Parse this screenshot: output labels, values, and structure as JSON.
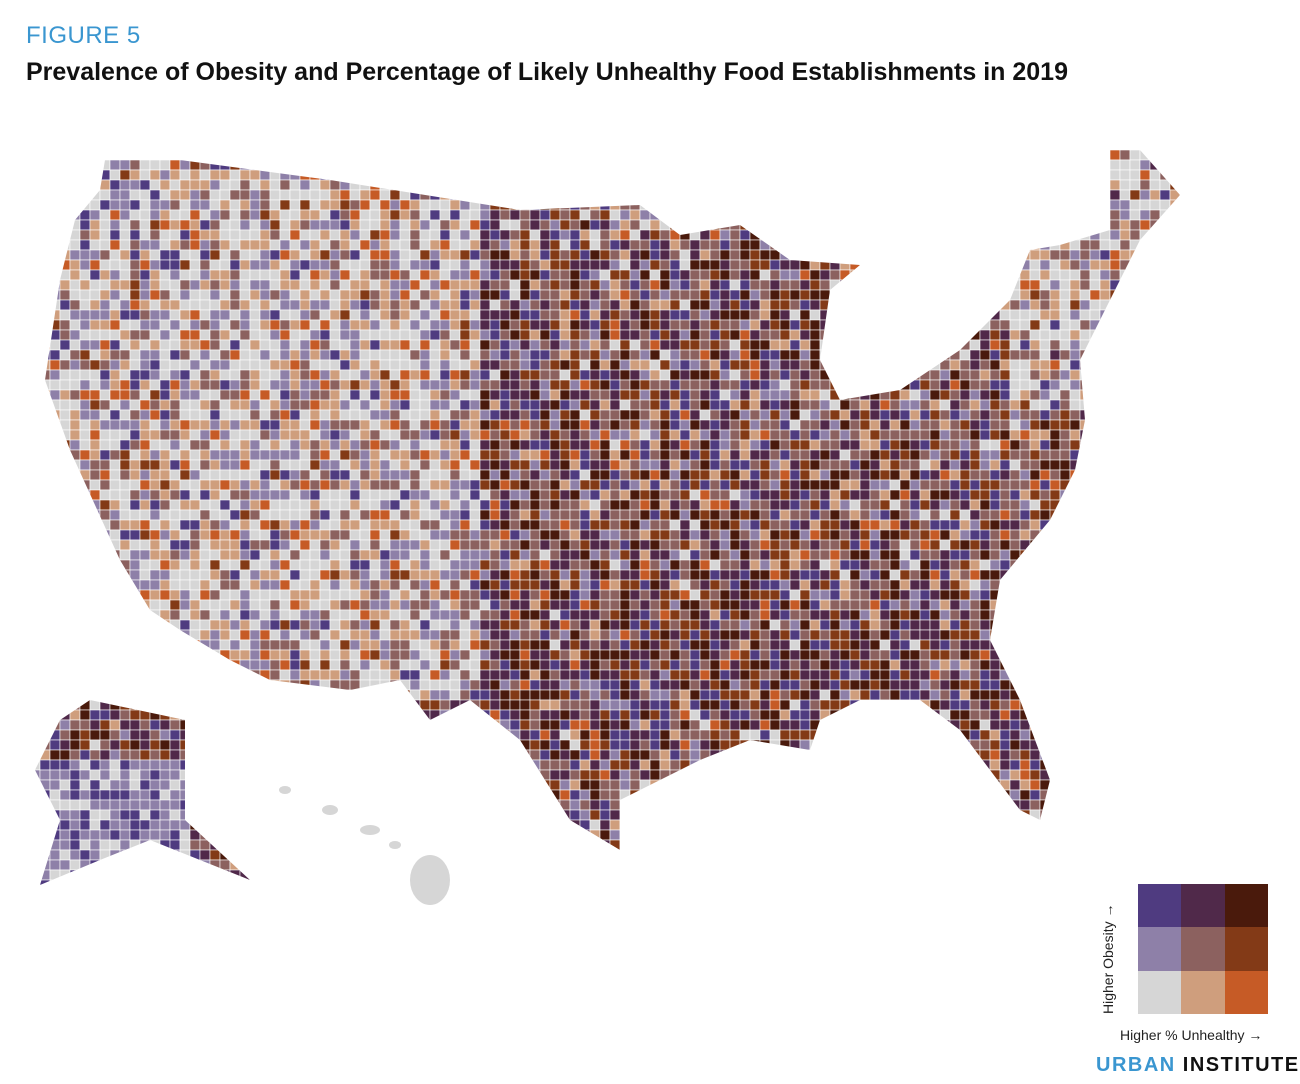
{
  "figure_label": "FIGURE 5",
  "title": "Prevalence of Obesity and Percentage of Likely Unhealthy Food Establishments in 2019",
  "legend": {
    "y_label": "Higher Obesity →",
    "x_label": "Higher % Unhealthy →",
    "colors": [
      [
        "#4f3b80",
        "#50294a",
        "#4a1a0c"
      ],
      [
        "#8e80a8",
        "#8c615f",
        "#833a17"
      ],
      [
        "#d6d6d6",
        "#cf9e7d",
        "#c65b26"
      ]
    ],
    "rows_order": "top = high obesity, bottom = low obesity",
    "cols_order": "left = low % unhealthy, right = high % unhealthy"
  },
  "map": {
    "type": "bivariate county choropleth",
    "region": "United States (incl. Alaska and Hawaii)",
    "no_data_color": "#888888"
  },
  "brand": {
    "part1": "URBAN",
    "part2": "INSTITUTE"
  }
}
